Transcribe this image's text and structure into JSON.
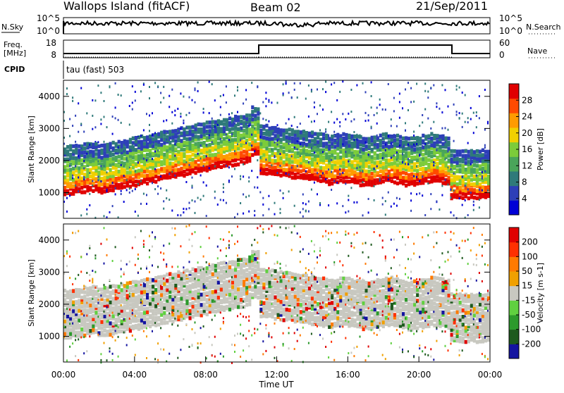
{
  "header": {
    "title": "Wallops Island (fitACF)",
    "beam": "Beam 02",
    "date": "21/Sep/2011"
  },
  "noise_panel": {
    "left_label": "N.Sky",
    "right_label": "N.Search",
    "left_ticks": [
      "10^5",
      "10^0"
    ],
    "right_ticks": [
      "10^5",
      "10^0"
    ]
  },
  "freq_panel": {
    "left_label_line1": "Freq.",
    "left_label_line2": "[MHz]",
    "right_label": "Nave",
    "left_ticks": [
      "18",
      "8"
    ],
    "right_ticks": [
      "60",
      "0"
    ]
  },
  "cpid_panel": {
    "label": "CPID",
    "text": "tau (fast) 503"
  },
  "chart_data": [
    {
      "type": "heatmap",
      "panel": "power",
      "ylabel": "Slant Range [km]",
      "ylim": [
        200,
        4500
      ],
      "yticks": [
        "1000",
        "2000",
        "3000",
        "4000"
      ],
      "colorbar_label": "Power [dB]",
      "colorbar_ticks": [
        "28",
        "24",
        "20",
        "16",
        "12",
        "8",
        "4"
      ],
      "colors": [
        "#0000d6",
        "#2d3fb8",
        "#2f7a7a",
        "#4aa55a",
        "#7ccc3a",
        "#f0d000",
        "#ff9b00",
        "#ff4a00",
        "#e00000"
      ]
    },
    {
      "type": "heatmap",
      "panel": "velocity",
      "ylabel": "Slant Range [km]",
      "ylim": [
        200,
        4500
      ],
      "yticks": [
        "1000",
        "2000",
        "3000",
        "4000"
      ],
      "colorbar_label": "Velocity [m s-1]",
      "colorbar_ticks": [
        "200",
        "100",
        "50",
        "15",
        "-15",
        "-50",
        "-100",
        "-200"
      ],
      "colors": [
        "#1414a0",
        "#1e5a1e",
        "#2c9a2c",
        "#60d040",
        "#c8c8c0",
        "#f0a000",
        "#ff7a00",
        "#ff3000",
        "#e00000"
      ]
    }
  ],
  "x_axis": {
    "label": "Time UT",
    "ticks": [
      "00:00",
      "04:00",
      "08:00",
      "12:00",
      "16:00",
      "20:00",
      "00:00"
    ]
  }
}
